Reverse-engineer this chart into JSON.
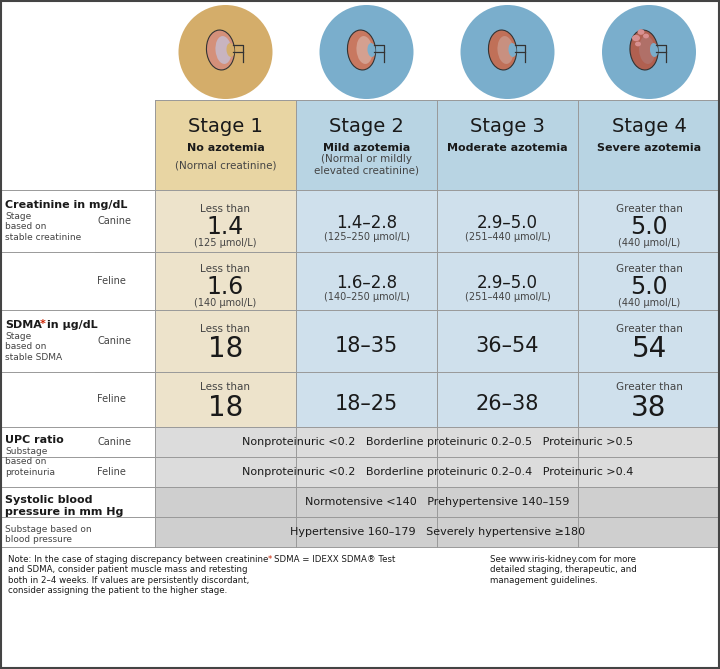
{
  "bg_color": "#ffffff",
  "col1_bg": "#e8d5a3",
  "col234_bg": "#b8d4e3",
  "col1_data_bg": "#ede3cb",
  "col234_data_bg": "#cfe0ec",
  "upc_bg": "#dcdcdc",
  "bp_bg": "#cfcfcf",
  "left_bg": "#ffffff",
  "circle_col1": "#d4ad6a",
  "circle_col234": "#7aaecc",
  "stages": [
    "Stage 1",
    "Stage 2",
    "Stage 3",
    "Stage 4"
  ],
  "stage_subtitles": [
    "No azotemia",
    "Mild azotemia",
    "Moderate azotemia",
    "Severe azotemia"
  ],
  "stage_sub2_1": "(Normal creatinine)",
  "stage_sub2_2": "(Normal or mildly\nelevated creatinine)",
  "creatinine_canine": [
    "Less than\n1.4\n(125 μmol/L)",
    "1.4–2.8\n(125–250 μmol/L)",
    "2.9–5.0\n(251–440 μmol/L)",
    "Greater than\n5.0\n(440 μmol/L)"
  ],
  "creatinine_feline": [
    "Less than\n1.6\n(140 μmol/L)",
    "1.6–2.8\n(140–250 μmol/L)",
    "2.9–5.0\n(251–440 μmol/L)",
    "Greater than\n5.0\n(440 μmol/L)"
  ],
  "sdma_canine": [
    "Less than\n18",
    "18–35",
    "36–54",
    "Greater than\n54"
  ],
  "sdma_feline": [
    "Less than\n18",
    "18–25",
    "26–38",
    "Greater than\n38"
  ],
  "upc_canine": "Nonproteinuric <0.2   Borderline proteinuric 0.2–0.5   Proteinuric >0.5",
  "upc_feline": "Nonproteinuric <0.2   Borderline proteinuric 0.2–0.4   Proteinuric >0.4",
  "bp_line1": "Normotensive <140   Prehypertensive 140–159",
  "bp_line2": "Hypertensive 160–179   Severely hypertensive ≥180",
  "note1": "Note: In the case of staging discrepancy between creatinine\nand SDMA, consider patient muscle mass and retesting\nboth in 2–4 weeks. If values are persistently discordant,\nconsider assigning the patient to the higher stage.",
  "note2_star": "*",
  "note2_text": "SDMA = IDEXX SDMA® Test",
  "note3": "See www.iris-kidney.com for more\ndetailed staging, therapeutic, and\nmanagement guidelines.",
  "line_color": "#999999",
  "text_dark": "#1a1a1a",
  "text_mid": "#444444",
  "text_light": "#555555",
  "red_star": "#cc2200"
}
